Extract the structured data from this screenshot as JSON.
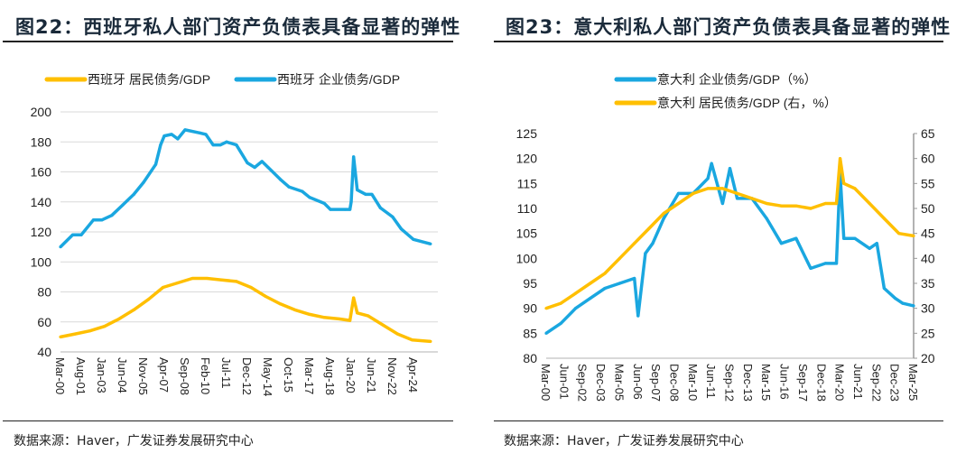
{
  "colors": {
    "blue": "#1aa7e0",
    "yellow": "#ffbf00"
  },
  "chart_data": [
    {
      "type": "line",
      "title": "图22：西班牙私人部门资产负债表具备显著的弹性",
      "source": "数据来源：Haver，广发证券发展研究中心",
      "ylim": [
        40,
        200
      ],
      "yticks": [
        "40",
        "60",
        "80",
        "100",
        "120",
        "140",
        "160",
        "180",
        "200"
      ],
      "xticks": [
        "Mar-00",
        "Aug-01",
        "Jan-03",
        "Jun-04",
        "Nov-05",
        "Apr-07",
        "Sep-08",
        "Feb-10",
        "Jul-11",
        "Dec-12",
        "May-14",
        "Oct-15",
        "Mar-17",
        "Aug-18",
        "Jan-20",
        "Jun-21",
        "Nov-22",
        "Apr-24"
      ],
      "xrange": [
        "2000-03",
        "2025-12"
      ],
      "grid": "horizontal",
      "legend": "top",
      "series": [
        {
          "name": "西班牙 居民债务/GDP",
          "color": "#ffbf00",
          "axis": "left",
          "x": [
            "2000-03",
            "2001-03",
            "2002-03",
            "2003-03",
            "2004-03",
            "2005-03",
            "2006-03",
            "2007-03",
            "2008-03",
            "2009-03",
            "2010-03",
            "2011-03",
            "2012-03",
            "2013-03",
            "2014-03",
            "2015-03",
            "2016-03",
            "2017-03",
            "2018-03",
            "2019-03",
            "2019-12",
            "2020-03",
            "2020-06",
            "2021-03",
            "2022-03",
            "2023-03",
            "2024-03",
            "2025-06"
          ],
          "values": [
            50,
            52,
            54,
            57,
            62,
            68,
            75,
            83,
            86,
            89,
            89,
            88,
            87,
            83,
            77,
            72,
            68,
            65,
            63,
            62,
            61,
            76,
            66,
            64,
            58,
            52,
            48,
            47
          ]
        },
        {
          "name": "西班牙 企业债务/GDP",
          "color": "#1aa7e0",
          "axis": "left",
          "x": [
            "2000-03",
            "2001-01",
            "2001-08",
            "2002-06",
            "2003-01",
            "2003-09",
            "2004-06",
            "2005-03",
            "2005-11",
            "2006-09",
            "2007-01",
            "2007-04",
            "2007-10",
            "2008-03",
            "2008-09",
            "2009-09",
            "2010-02",
            "2010-08",
            "2011-02",
            "2011-07",
            "2012-03",
            "2012-12",
            "2013-06",
            "2013-12",
            "2014-05",
            "2015-03",
            "2015-10",
            "2016-09",
            "2017-03",
            "2018-03",
            "2018-08",
            "2019-08",
            "2019-12",
            "2020-01",
            "2020-03",
            "2020-06",
            "2021-01",
            "2021-06",
            "2022-01",
            "2022-11",
            "2023-06",
            "2024-04",
            "2025-06"
          ],
          "values": [
            110,
            118,
            118,
            128,
            128,
            131,
            138,
            145,
            153,
            165,
            178,
            184,
            185,
            182,
            188,
            186,
            185,
            178,
            178,
            180,
            178,
            166,
            163,
            167,
            163,
            155,
            150,
            147,
            143,
            139,
            135,
            135,
            135,
            140,
            170,
            148,
            145,
            145,
            136,
            130,
            122,
            115,
            112
          ]
        }
      ]
    },
    {
      "type": "line",
      "title": "图23：意大利私人部门资产负债表具备显著的弹性",
      "source": "数据来源：Haver，广发证券发展研究中心",
      "ylim": [
        80,
        125
      ],
      "y2lim": [
        20,
        65
      ],
      "yticks": [
        "80",
        "85",
        "90",
        "95",
        "100",
        "105",
        "110",
        "115",
        "120",
        "125"
      ],
      "y2ticks": [
        "20",
        "25",
        "30",
        "35",
        "40",
        "45",
        "50",
        "55",
        "60",
        "65"
      ],
      "xticks": [
        "Mar-00",
        "Jun-01",
        "Sep-02",
        "Dec-03",
        "Mar-05",
        "Jun-06",
        "Sep-07",
        "Dec-08",
        "Mar-10",
        "Jun-11",
        "Sep-12",
        "Dec-13",
        "Mar-15",
        "Jun-16",
        "Sep-17",
        "Dec-18",
        "Mar-20",
        "Jun-21",
        "Sep-22",
        "Dec-23",
        "Mar-25"
      ],
      "xrange": [
        "2000-03",
        "2025-03"
      ],
      "grid": "none",
      "legend": "top",
      "series": [
        {
          "name": "意大利 企业债务/GDP（%）",
          "color": "#1aa7e0",
          "axis": "left",
          "x": [
            "2000-03",
            "2001-03",
            "2002-03",
            "2003-03",
            "2004-03",
            "2005-03",
            "2006-03",
            "2006-06",
            "2006-12",
            "2007-06",
            "2008-03",
            "2009-03",
            "2010-03",
            "2011-03",
            "2011-06",
            "2012-03",
            "2012-09",
            "2013-03",
            "2014-03",
            "2015-03",
            "2016-03",
            "2017-03",
            "2018-03",
            "2019-03",
            "2019-12",
            "2020-03",
            "2020-06",
            "2021-03",
            "2022-03",
            "2022-09",
            "2023-03",
            "2023-12",
            "2024-06",
            "2025-03"
          ],
          "values": [
            85,
            87,
            90,
            92,
            94,
            95,
            96,
            88.5,
            101,
            103,
            108,
            113,
            113,
            116,
            119,
            111,
            118,
            112,
            112,
            108,
            103,
            104,
            98,
            99,
            99,
            117,
            104,
            104,
            102,
            103,
            94,
            92,
            91,
            90.5
          ]
        },
        {
          "name": "意大利 居民债务/GDP (右，%）",
          "color": "#ffbf00",
          "axis": "right",
          "x": [
            "2000-03",
            "2001-03",
            "2002-03",
            "2003-03",
            "2004-03",
            "2005-03",
            "2006-03",
            "2007-03",
            "2008-03",
            "2009-03",
            "2010-03",
            "2011-03",
            "2012-03",
            "2013-03",
            "2014-03",
            "2015-03",
            "2016-03",
            "2017-03",
            "2018-03",
            "2019-03",
            "2019-12",
            "2020-03",
            "2020-06",
            "2021-03",
            "2022-03",
            "2023-03",
            "2024-03",
            "2025-03"
          ],
          "values": [
            30,
            31,
            33,
            35,
            37,
            40,
            43,
            46,
            49,
            51,
            53,
            54,
            54,
            53,
            52,
            51,
            50.5,
            50.5,
            50,
            51,
            51,
            60,
            55,
            54,
            51,
            48,
            45,
            44.5
          ]
        }
      ]
    }
  ]
}
